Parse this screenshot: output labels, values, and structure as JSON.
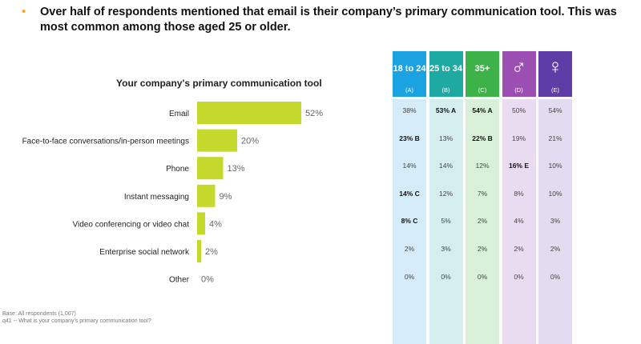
{
  "headline": {
    "bullet": "•",
    "text": "Over half of respondents mentioned that email is their company’s primary communication tool. This was most common among those aged 25 or older."
  },
  "chart_data": {
    "type": "bar",
    "orientation": "horizontal",
    "title": "Your company's primary communication tool",
    "categories": [
      "Email",
      "Face-to-face conversations/in-person meetings",
      "Phone",
      "Instant messaging",
      "Video conferencing or video chat",
      "Enterprise social network",
      "Other"
    ],
    "values": [
      52,
      20,
      13,
      9,
      4,
      2,
      0
    ],
    "value_labels": [
      "52%",
      "20%",
      "13%",
      "9%",
      "4%",
      "2%",
      "0%"
    ],
    "xlim": [
      0,
      60
    ],
    "bar_color": "#c5d92d",
    "grid": false,
    "legend": "none"
  },
  "table": {
    "columns": [
      {
        "label": "18 to 24",
        "letter": "(A)",
        "header_color": "#1aa3e0",
        "body_color": "#d3ecf8",
        "icon": ""
      },
      {
        "label": "25 to 34",
        "letter": "(B)",
        "header_color": "#1eaaa3",
        "body_color": "#d3eeec",
        "icon": ""
      },
      {
        "label": "35+",
        "letter": "(C)",
        "header_color": "#3db249",
        "body_color": "#d8f0d8",
        "icon": ""
      },
      {
        "label": "♂",
        "letter": "(D)",
        "header_color": "#9b4fb2",
        "body_color": "#eadcf0",
        "icon": "male-icon"
      },
      {
        "label": "♀",
        "letter": "(E)",
        "header_color": "#5e3ea6",
        "body_color": "#e1dcef",
        "icon": "female-icon"
      }
    ],
    "rows": [
      [
        "38%",
        "53% A",
        "54% A",
        "50%",
        "54%"
      ],
      [
        "23% B",
        "13%",
        "22% B",
        "19%",
        "21%"
      ],
      [
        "14%",
        "14%",
        "12%",
        "16% E",
        "10%"
      ],
      [
        "14% C",
        "12%",
        "7%",
        "8%",
        "10%"
      ],
      [
        "8% C",
        "5%",
        "2%",
        "4%",
        "3%"
      ],
      [
        "2%",
        "3%",
        "2%",
        "2%",
        "2%"
      ],
      [
        "0%",
        "0%",
        "0%",
        "0%",
        "0%"
      ]
    ],
    "significant": [
      [
        false,
        true,
        true,
        false,
        false
      ],
      [
        true,
        false,
        true,
        false,
        false
      ],
      [
        false,
        false,
        false,
        true,
        false
      ],
      [
        true,
        false,
        false,
        false,
        false
      ],
      [
        true,
        false,
        false,
        false,
        false
      ],
      [
        false,
        false,
        false,
        false,
        false
      ],
      [
        false,
        false,
        false,
        false,
        false
      ]
    ]
  },
  "footnotes": {
    "base": "Base: All respondents (1,007)",
    "question": "q41 -- What is your company's primary communication tool?"
  }
}
